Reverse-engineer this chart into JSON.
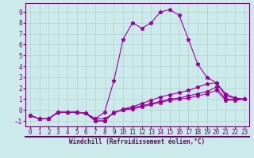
{
  "xlabel": "Windchill (Refroidissement éolien,°C)",
  "xlim": [
    -0.5,
    23.5
  ],
  "ylim": [
    -1.5,
    9.8
  ],
  "xticks": [
    0,
    1,
    2,
    3,
    4,
    5,
    6,
    7,
    8,
    9,
    10,
    11,
    12,
    13,
    14,
    15,
    16,
    17,
    18,
    19,
    20,
    21,
    22,
    23
  ],
  "yticks": [
    -1,
    0,
    1,
    2,
    3,
    4,
    5,
    6,
    7,
    8,
    9
  ],
  "background_color": "#cdeaea",
  "grid_color": "#b0d0d0",
  "line_color": "#990099",
  "line2_x": [
    0,
    1,
    2,
    3,
    4,
    5,
    6,
    7,
    8,
    9,
    10,
    11,
    12,
    13,
    14,
    15,
    16,
    17,
    18,
    19,
    20,
    21,
    22,
    23
  ],
  "line2_y": [
    -0.5,
    -0.8,
    -0.8,
    -0.2,
    -0.2,
    -0.2,
    -0.3,
    -0.8,
    -0.2,
    2.7,
    6.5,
    8.0,
    7.5,
    8.0,
    9.0,
    9.2,
    8.7,
    6.5,
    4.2,
    3.0,
    2.5,
    1.5,
    1.1,
    1.0
  ],
  "line1_x": [
    0,
    1,
    2,
    3,
    4,
    5,
    6,
    7,
    8,
    9,
    10,
    11,
    12,
    13,
    14,
    15,
    16,
    17,
    18,
    19,
    20,
    21,
    22,
    23
  ],
  "line1_y": [
    -0.5,
    -0.8,
    -0.8,
    -0.2,
    -0.2,
    -0.2,
    -0.3,
    -0.8,
    -0.8,
    -0.3,
    0.1,
    0.3,
    0.6,
    0.9,
    1.2,
    1.4,
    1.6,
    1.8,
    2.1,
    2.4,
    2.5,
    1.3,
    1.1,
    1.0
  ],
  "line3_x": [
    0,
    1,
    2,
    3,
    4,
    5,
    6,
    7,
    8,
    9,
    10,
    11,
    12,
    13,
    14,
    15,
    16,
    17,
    18,
    19,
    20,
    21,
    22,
    23
  ],
  "line3_y": [
    -0.5,
    -0.8,
    -0.8,
    -0.2,
    -0.2,
    -0.2,
    -0.3,
    -1.0,
    -1.0,
    -0.2,
    0.05,
    0.2,
    0.4,
    0.6,
    0.8,
    1.0,
    1.1,
    1.3,
    1.5,
    1.7,
    2.1,
    1.0,
    1.0,
    1.0
  ],
  "line4_x": [
    0,
    1,
    2,
    3,
    4,
    5,
    6,
    7,
    8,
    9,
    10,
    11,
    12,
    13,
    14,
    15,
    16,
    17,
    18,
    19,
    20,
    21,
    22,
    23
  ],
  "line4_y": [
    -0.5,
    -0.8,
    -0.8,
    -0.2,
    -0.2,
    -0.2,
    -0.3,
    -1.0,
    -1.0,
    -0.2,
    0.0,
    0.1,
    0.3,
    0.5,
    0.7,
    0.9,
    1.0,
    1.1,
    1.3,
    1.5,
    1.8,
    0.9,
    0.9,
    1.0
  ],
  "separator_color": "#660066",
  "label_color": "#660066",
  "tick_fontsize": 5.5,
  "xlabel_fontsize": 5.5
}
